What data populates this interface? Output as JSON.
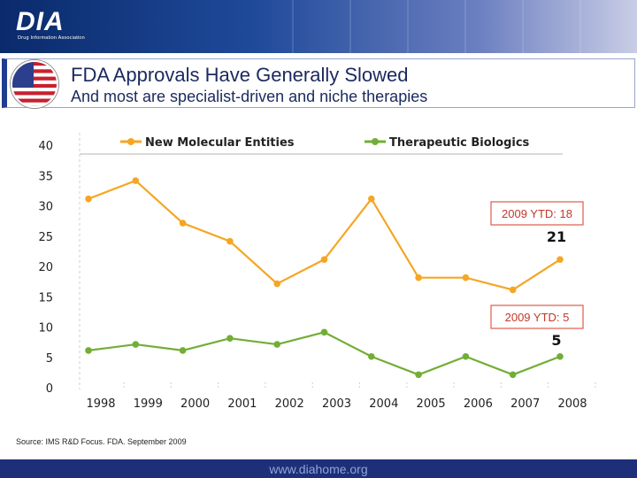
{
  "header": {
    "logo_text": "DIA",
    "logo_subtitle": "Drug Information Association",
    "title": "FDA  Approvals Have Generally Slowed",
    "subtitle": "And most are specialist-driven and niche therapies"
  },
  "chart_data": {
    "type": "line",
    "categories": [
      "1998",
      "1999",
      "2000",
      "2001",
      "2002",
      "2003",
      "2004",
      "2005",
      "2006",
      "2007",
      "2008"
    ],
    "series": [
      {
        "name": "New Molecular Entities",
        "values": [
          31,
          34,
          27,
          24,
          17,
          21,
          31,
          18,
          18,
          16,
          21
        ],
        "color": "#f5a623"
      },
      {
        "name": "Therapeutic Biologics",
        "values": [
          6,
          7,
          6,
          8,
          7,
          9,
          5,
          2,
          5,
          2,
          5
        ],
        "color": "#72ae36"
      }
    ],
    "y_ticks": [
      "0",
      "5",
      "10",
      "15",
      "20",
      "25",
      "30",
      "35",
      "40"
    ],
    "ylim": [
      0,
      40
    ],
    "legend_position": "top",
    "annotations": [
      {
        "text": "2009 YTD: 18",
        "series": "New Molecular Entities"
      },
      {
        "text": "2009 YTD: 5",
        "series": "Therapeutic Biologics"
      }
    ],
    "end_labels": [
      "21",
      "5"
    ]
  },
  "footer": {
    "source": "Source: IMS R&D Focus. FDA. September 2009",
    "url": "www.diahome.org"
  }
}
